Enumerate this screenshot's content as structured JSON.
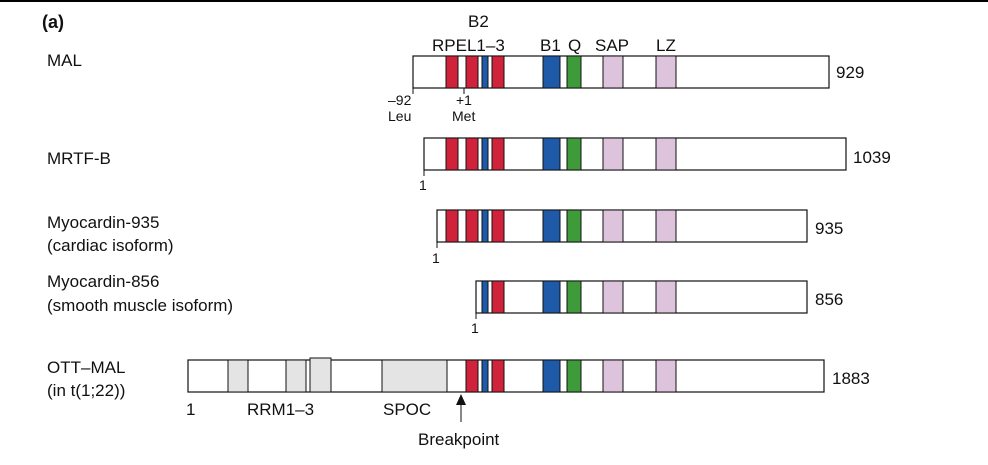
{
  "panel_label": "(a)",
  "domain_headers": {
    "b2": "B2",
    "rpel": "RPEL1–3",
    "b1": "B1",
    "q": "Q",
    "sap": "SAP",
    "lz": "LZ"
  },
  "colors": {
    "rpel": "#d0223a",
    "b2": "#1f5aa8",
    "b1": "#1f5aa8",
    "q": "#3f9b3a",
    "sap": "#dec3dc",
    "lz": "#dec3dc",
    "grey": "#e4e4e4"
  },
  "proteins": [
    {
      "name_lines": [
        "MAL"
      ],
      "length": "929",
      "start_annotations": [
        {
          "top": "–92",
          "bottom": "Leu"
        },
        {
          "top": "+1",
          "bottom": "Met"
        }
      ]
    },
    {
      "name_lines": [
        "MRTF-B"
      ],
      "length": "1039",
      "start_label": "1"
    },
    {
      "name_lines": [
        "Myocardin-935",
        "(cardiac isoform)"
      ],
      "length": "935",
      "start_label": "1"
    },
    {
      "name_lines": [
        "Myocardin-856",
        "(smooth muscle isoform)"
      ],
      "length": "856",
      "start_label": "1"
    },
    {
      "name_lines": [
        "OTT–MAL",
        "(in t(1;22))"
      ],
      "length": "1883",
      "start_label": "1",
      "rrm_label": "RRM1–3",
      "spoc_label": "SPOC",
      "breakpoint_label": "Breakpoint"
    }
  ]
}
